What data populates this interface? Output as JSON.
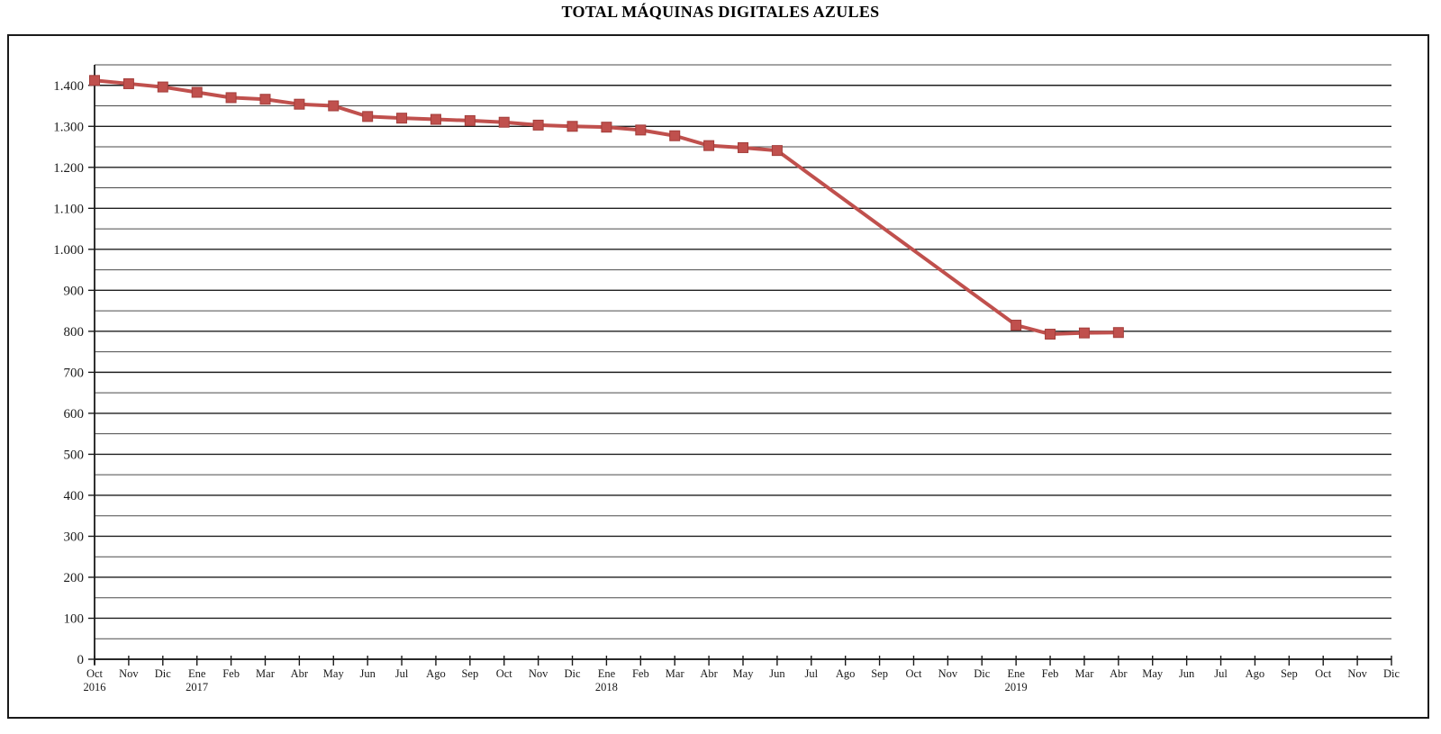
{
  "title": "TOTAL MÁQUINAS DIGITALES AZULES",
  "chart_data": {
    "type": "line",
    "title": "TOTAL MÁQUINAS DIGITALES AZULES",
    "grid": true,
    "legend": false,
    "ylim": [
      0,
      1450
    ],
    "gridline_step": 50,
    "ylabel_step": 100,
    "y_number_format": "es-dot-thousands",
    "line_color": "#C0504D",
    "marker": "square",
    "marker_edge_color": "#A23D3A",
    "axis_color": "#1a1a1a",
    "categories": [
      {
        "m": "Oct",
        "y": "2016"
      },
      {
        "m": "Nov"
      },
      {
        "m": "Dic"
      },
      {
        "m": "Ene",
        "y": "2017"
      },
      {
        "m": "Feb"
      },
      {
        "m": "Mar"
      },
      {
        "m": "Abr"
      },
      {
        "m": "May"
      },
      {
        "m": "Jun"
      },
      {
        "m": "Jul"
      },
      {
        "m": "Ago"
      },
      {
        "m": "Sep"
      },
      {
        "m": "Oct"
      },
      {
        "m": "Nov"
      },
      {
        "m": "Dic"
      },
      {
        "m": "Ene",
        "y": "2018"
      },
      {
        "m": "Feb"
      },
      {
        "m": "Mar"
      },
      {
        "m": "Abr"
      },
      {
        "m": "May"
      },
      {
        "m": "Jun"
      },
      {
        "m": "Jul"
      },
      {
        "m": "Ago"
      },
      {
        "m": "Sep"
      },
      {
        "m": "Oct"
      },
      {
        "m": "Nov"
      },
      {
        "m": "Dic"
      },
      {
        "m": "Ene",
        "y": "2019"
      },
      {
        "m": "Feb"
      },
      {
        "m": "Mar"
      },
      {
        "m": "Abr"
      },
      {
        "m": "May"
      },
      {
        "m": "Jun"
      },
      {
        "m": "Jul"
      },
      {
        "m": "Ago"
      },
      {
        "m": "Sep"
      },
      {
        "m": "Oct"
      },
      {
        "m": "Nov"
      },
      {
        "m": "Dic"
      }
    ],
    "values": [
      1412,
      1404,
      1396,
      1383,
      1370,
      1366,
      1354,
      1350,
      1324,
      1320,
      1317,
      1314,
      1310,
      1303,
      1300,
      1298,
      1291,
      1277,
      1253,
      1248,
      1241,
      null,
      null,
      null,
      null,
      null,
      null,
      815,
      793,
      796,
      797,
      null,
      null,
      null,
      null,
      null,
      null,
      null,
      null
    ],
    "note_gap_connected": "line connects Jun 2018 directly to Ene 2019 across missing months"
  }
}
